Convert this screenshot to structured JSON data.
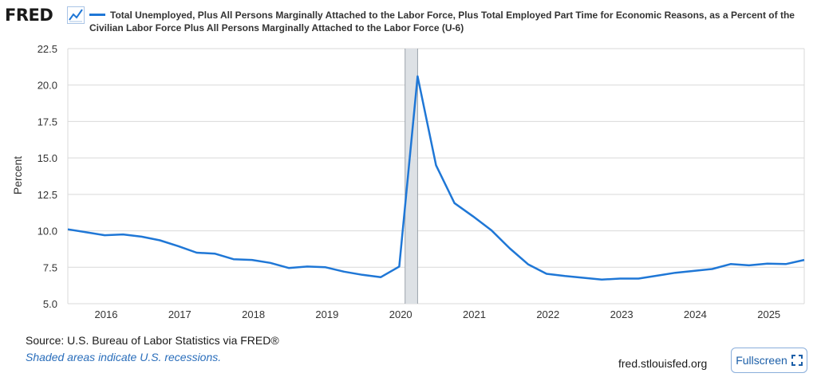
{
  "logo": {
    "text": "FRED",
    "icon": "line-chart-icon"
  },
  "legend": {
    "label": "Total Unemployed, Plus All Persons Marginally Attached to the Labor Force, Plus Total Employed Part Time for Economic Reasons, as a Percent of the Civilian Labor Force Plus All Persons Marginally Attached to the Labor Force (U-6)",
    "color": "#1f77d6"
  },
  "footer": {
    "source": "Source: U.S. Bureau of Labor Statistics via FRED®",
    "shaded_note": "Shaded areas indicate U.S. recessions.",
    "site": "fred.stlouisfed.org",
    "fullscreen_label": "Fullscreen",
    "fullscreen_icon": "expand-icon"
  },
  "chart_data": {
    "type": "line",
    "title": "Total Unemployed, Plus All Persons Marginally Attached to the Labor Force, Plus Total Employed Part Time for Economic Reasons, as a Percent of the Civilian Labor Force Plus All Persons Marginally Attached to the Labor Force (U-6)",
    "xlabel": "",
    "ylabel": "Percent",
    "xlim": [
      2015.5,
      2025.5
    ],
    "ylim": [
      5.0,
      22.5
    ],
    "yticks": [
      "5.0",
      "7.5",
      "10.0",
      "12.5",
      "15.0",
      "17.5",
      "20.0",
      "22.5"
    ],
    "xticks": [
      "2016",
      "2017",
      "2018",
      "2019",
      "2020",
      "2021",
      "2022",
      "2023",
      "2024",
      "2025"
    ],
    "grid": true,
    "recession_shading": [
      [
        2020.08,
        2020.25
      ]
    ],
    "recession_color": "#dde1e5",
    "line_color": "#1f77d6",
    "series": [
      {
        "name": "U-6",
        "x": [
          2015.5,
          2015.75,
          2016.0,
          2016.25,
          2016.5,
          2016.75,
          2017.0,
          2017.25,
          2017.5,
          2017.75,
          2018.0,
          2018.25,
          2018.5,
          2018.75,
          2019.0,
          2019.25,
          2019.5,
          2019.75,
          2020.0,
          2020.25,
          2020.5,
          2020.75,
          2021.0,
          2021.25,
          2021.5,
          2021.75,
          2022.0,
          2022.25,
          2022.5,
          2022.75,
          2023.0,
          2023.25,
          2023.5,
          2023.75,
          2024.0,
          2024.25,
          2024.5,
          2024.75,
          2025.0,
          2025.25,
          2025.5
        ],
        "values": [
          10.1,
          9.9,
          9.7,
          9.75,
          9.6,
          9.35,
          8.95,
          8.5,
          8.43,
          8.05,
          8.0,
          7.8,
          7.45,
          7.55,
          7.5,
          7.2,
          6.98,
          6.82,
          7.55,
          20.6,
          14.5,
          11.9,
          11.0,
          10.05,
          8.8,
          7.7,
          7.05,
          6.9,
          6.78,
          6.65,
          6.72,
          6.72,
          6.92,
          7.12,
          7.25,
          7.38,
          7.72,
          7.63,
          7.75,
          7.72,
          8.0
        ]
      }
    ]
  }
}
